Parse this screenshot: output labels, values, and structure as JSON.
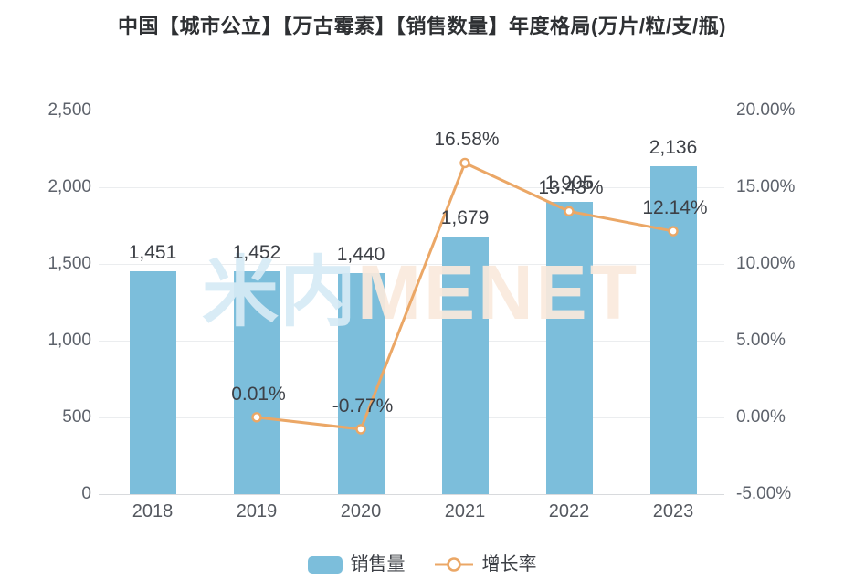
{
  "title": "中国【城市公立】【万古霉素】【销售数量】年度格局(万片/粒/支/瓶)",
  "watermark": {
    "cn": "米内",
    "en": "MENET"
  },
  "chart_data": {
    "type": "bar+line",
    "categories": [
      "2018",
      "2019",
      "2020",
      "2021",
      "2022",
      "2023"
    ],
    "series": [
      {
        "name": "销售量",
        "type": "bar",
        "axis": "left",
        "values": [
          1451,
          1452,
          1440,
          1679,
          1905,
          2136
        ],
        "labels": [
          "1,451",
          "1,452",
          "1,440",
          "1,679",
          "1,905",
          "2,136"
        ],
        "color": "#7CBEDB"
      },
      {
        "name": "增长率",
        "type": "line",
        "axis": "right",
        "values": [
          null,
          0.01,
          -0.77,
          16.58,
          13.43,
          12.14
        ],
        "labels": [
          null,
          "0.01%",
          "-0.77%",
          "16.58%",
          "13.43%",
          "12.14%"
        ],
        "color": "#EBA766"
      }
    ],
    "left_axis": {
      "min": 0,
      "max": 2500,
      "ticks": [
        "0",
        "500",
        "1,000",
        "1,500",
        "2,000",
        "2,500"
      ]
    },
    "right_axis": {
      "min": -5,
      "max": 20,
      "ticks": [
        "-5.00%",
        "0.00%",
        "5.00%",
        "10.00%",
        "15.00%",
        "20.00%"
      ]
    },
    "grid": true,
    "legend_position": "bottom"
  },
  "colors": {
    "bar": "#7CBEDB",
    "line": "#EBA766",
    "marker_fill": "#ffffff",
    "data_label": "#3d4046",
    "axis_tick": "#5d626b",
    "gridline": "#ebedef",
    "axis_line": "#d8dadd",
    "title": "#2e3033"
  }
}
